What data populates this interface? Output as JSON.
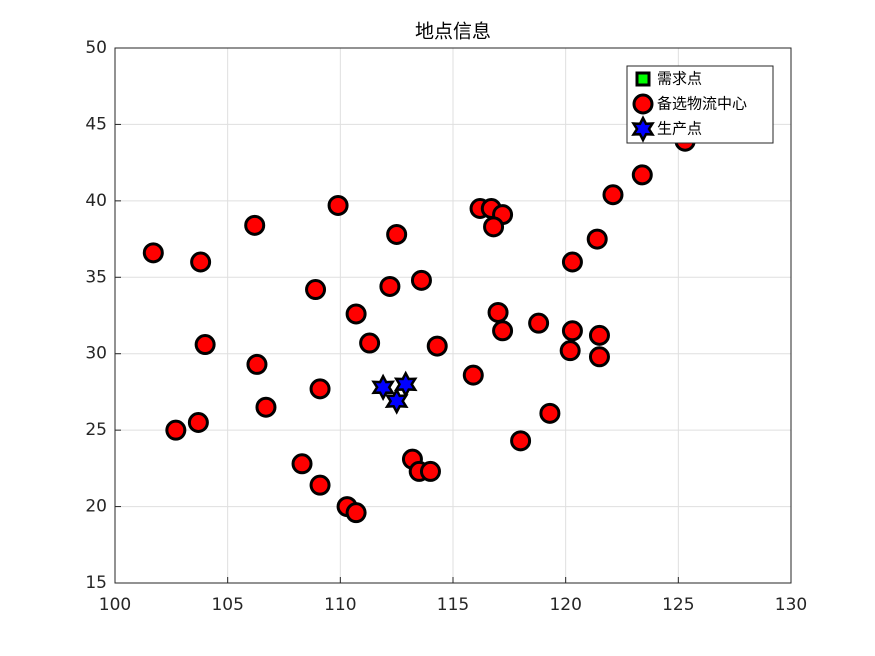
{
  "chart_data": {
    "type": "scatter",
    "title": "地点信息",
    "xlim": [
      100,
      130
    ],
    "xticks": [
      100,
      105,
      110,
      115,
      120,
      125,
      130
    ],
    "ylim": [
      15,
      50
    ],
    "yticks": [
      15,
      20,
      25,
      30,
      35,
      40,
      45,
      50
    ],
    "grid": true,
    "legend": "northeast",
    "series": [
      {
        "name": "需求点",
        "color": "#00ff00",
        "marker": "square",
        "x": [],
        "y": []
      },
      {
        "name": "备选物流中心",
        "color": "#ff0000",
        "marker": "circle",
        "x": [
          101.7,
          103.8,
          104.0,
          102.7,
          103.7,
          106.2,
          106.3,
          106.7,
          108.9,
          109.1,
          108.3,
          109.1,
          109.9,
          110.7,
          111.3,
          110.3,
          110.7,
          112.5,
          112.2,
          113.6,
          114.3,
          113.2,
          113.5,
          114.0,
          115.9,
          116.2,
          116.7,
          117.2,
          116.8,
          117.0,
          117.2,
          118.8,
          118.0,
          119.3,
          120.3,
          120.3,
          120.2,
          121.4,
          121.5,
          121.5,
          122.1,
          123.4,
          125.3
        ],
        "y": [
          36.6,
          36.0,
          30.6,
          25.0,
          25.5,
          38.4,
          29.3,
          26.5,
          34.2,
          27.7,
          22.8,
          21.4,
          39.7,
          32.6,
          30.7,
          20.0,
          19.6,
          37.8,
          34.4,
          34.8,
          30.5,
          23.1,
          22.3,
          22.3,
          28.6,
          39.5,
          39.5,
          39.1,
          38.3,
          32.7,
          31.5,
          32.0,
          24.3,
          26.1,
          36.0,
          31.5,
          30.2,
          37.5,
          31.2,
          29.8,
          40.4,
          41.7,
          43.9
        ]
      },
      {
        "name": "生产点",
        "color": "#0000ff",
        "marker": "hexagram",
        "x": [
          111.9,
          112.9,
          112.5
        ],
        "y": [
          27.8,
          28.0,
          26.9
        ]
      }
    ]
  }
}
